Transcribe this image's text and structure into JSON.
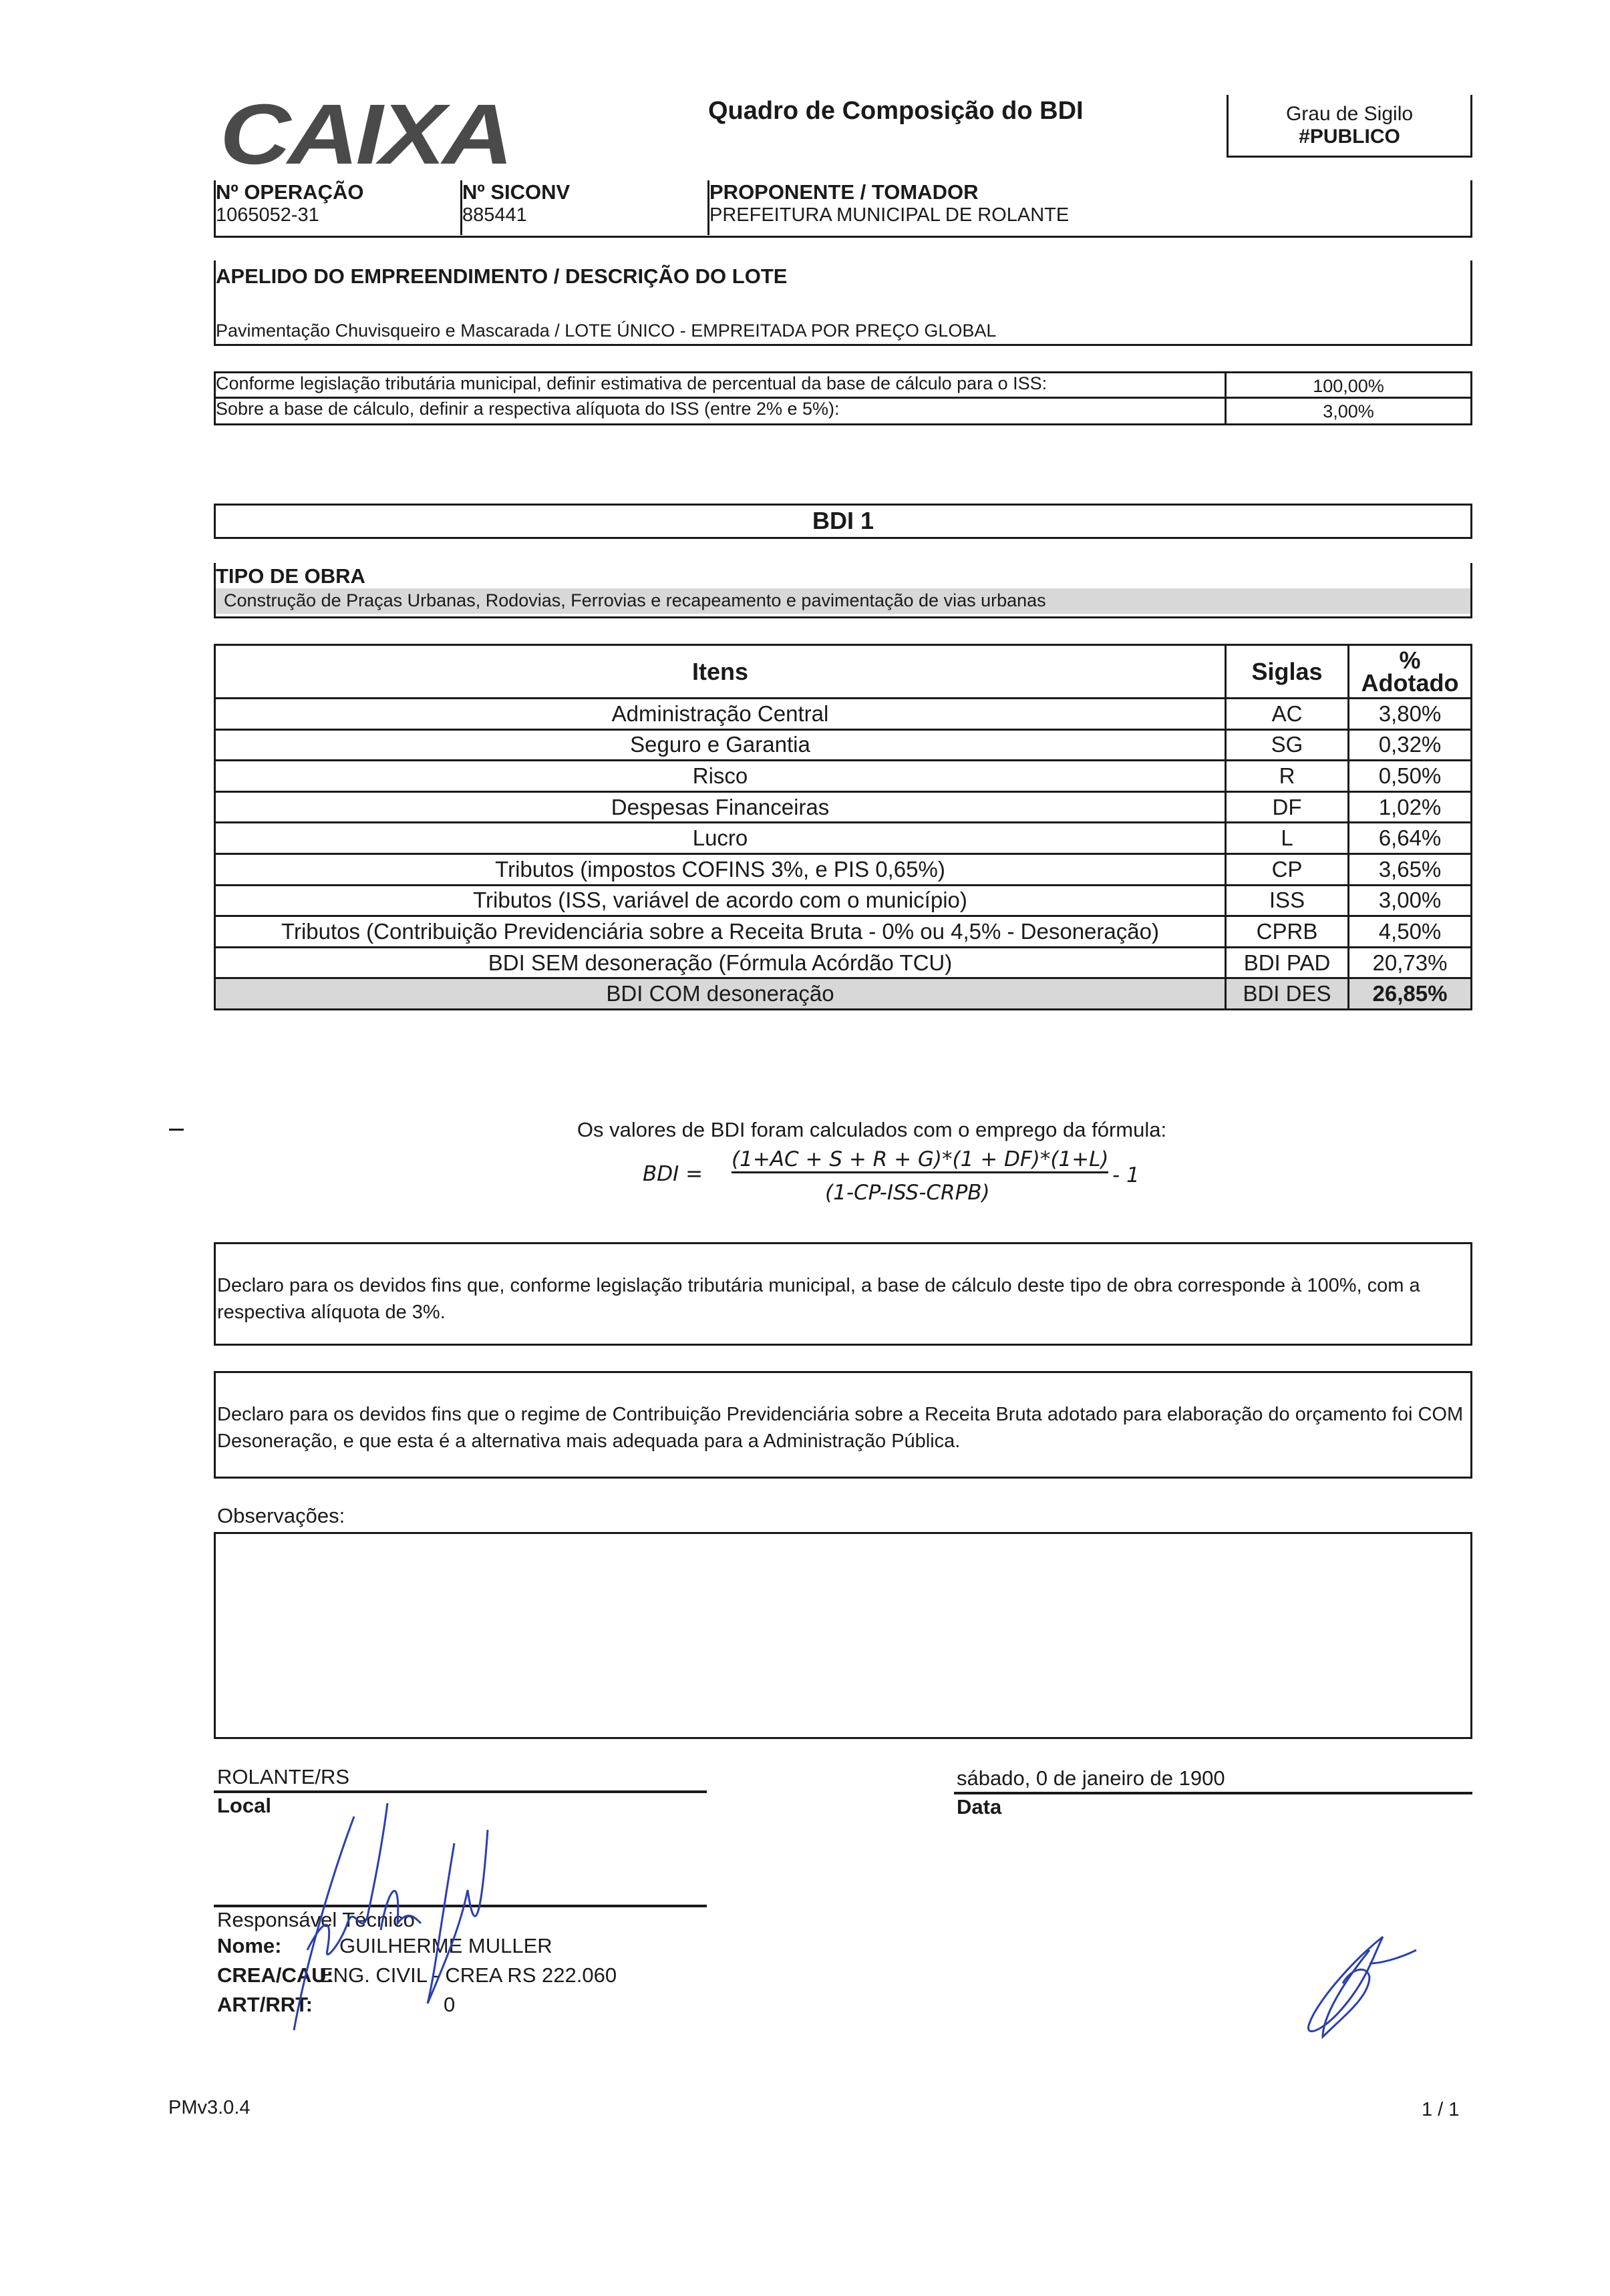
{
  "header": {
    "logo": "CAIXA",
    "title": "Quadro de Composição do BDI",
    "sigilo_label": "Grau de Sigilo",
    "sigilo_value": "#PUBLICO"
  },
  "ids": {
    "operacao_label": "Nº OPERAÇÃO",
    "operacao": "1065052-31",
    "siconv_label": "Nº SICONV",
    "siconv": "885441",
    "proponente_label": "PROPONENTE / TOMADOR",
    "proponente": "PREFEITURA MUNICIPAL DE ROLANTE"
  },
  "apelido": {
    "label": "APELIDO DO EMPREENDIMENTO / DESCRIÇÃO DO LOTE",
    "value": "Pavimentação Chuvisqueiro e Mascarada / LOTE ÚNICO - EMPREITADA POR PREÇO GLOBAL"
  },
  "iss": {
    "rows": [
      {
        "label": "Conforme legislação tributária municipal, definir estimativa de percentual da base de cálculo para o ISS:",
        "value": "100,00%"
      },
      {
        "label": "Sobre a base de cálculo, definir a respectiva alíquota do ISS (entre 2% e 5%):",
        "value": "3,00%"
      }
    ]
  },
  "bdi_title": "BDI 1",
  "tipo_obra": {
    "label": "TIPO DE OBRA",
    "value": "Construção de Praças Urbanas, Rodovias, Ferrovias e recapeamento e pavimentação de vias urbanas"
  },
  "items": {
    "headers": [
      "Itens",
      "Siglas",
      "% Adotado"
    ],
    "rows": [
      {
        "item": "Administração Central",
        "sigla": "AC",
        "pct": "3,80%"
      },
      {
        "item": "Seguro e Garantia",
        "sigla": "SG",
        "pct": "0,32%"
      },
      {
        "item": "Risco",
        "sigla": "R",
        "pct": "0,50%"
      },
      {
        "item": "Despesas Financeiras",
        "sigla": "DF",
        "pct": "1,02%"
      },
      {
        "item": "Lucro",
        "sigla": "L",
        "pct": "6,64%"
      },
      {
        "item": "Tributos (impostos COFINS 3%, e  PIS 0,65%)",
        "sigla": "CP",
        "pct": "3,65%"
      },
      {
        "item": "Tributos (ISS, variável de acordo com o município)",
        "sigla": "ISS",
        "pct": "3,00%"
      },
      {
        "item": "Tributos (Contribuição Previdenciária sobre a Receita Bruta - 0% ou 4,5% - Desoneração)",
        "sigla": "CPRB",
        "pct": "4,50%"
      },
      {
        "item": "BDI SEM desoneração (Fórmula Acórdão TCU)",
        "sigla": "BDI PAD",
        "pct": "20,73%"
      },
      {
        "item": "BDI COM desoneração",
        "sigla": "BDI DES",
        "pct": "26,85%"
      }
    ]
  },
  "formula": {
    "intro": "Os valores de BDI foram calculados com o emprego da fórmula:",
    "lhs": "BDI =",
    "numerator": "(1+AC + S + R + G)*(1 + DF)*(1+L)",
    "denominator": "(1-CP-ISS-CRPB)",
    "tail": "- 1"
  },
  "declaracoes": [
    "Declaro para os devidos fins que, conforme legislação tributária municipal, a base de cálculo deste tipo de obra corresponde à 100%, com a respectiva alíquota de 3%.",
    "Declaro para os devidos fins que o regime de Contribuição Previdenciária sobre a Receita Bruta adotado para elaboração do orçamento foi COM Desoneração, e que esta é a alternativa mais adequada para a Administração Pública."
  ],
  "observacoes_label": "Observações:",
  "assinatura": {
    "local_value": "ROLANTE/RS",
    "local_label": "Local",
    "data_value": "sábado, 0 de janeiro de 1900",
    "data_label": "Data",
    "resp_label": "Responsável Técnico",
    "nome_label": "Nome:",
    "nome": "GUILHERME MULLER",
    "crea_label": "CREA/CAU:",
    "crea": "ENG. CIVIL - CREA RS  222.060",
    "art_label": "ART/RRT:",
    "art": "0"
  },
  "footer": {
    "version": "PMv3.0.4",
    "page": "1 / 1"
  },
  "colors": {
    "signature": "#2b3fb0",
    "highlight": "#d8d8d8"
  }
}
